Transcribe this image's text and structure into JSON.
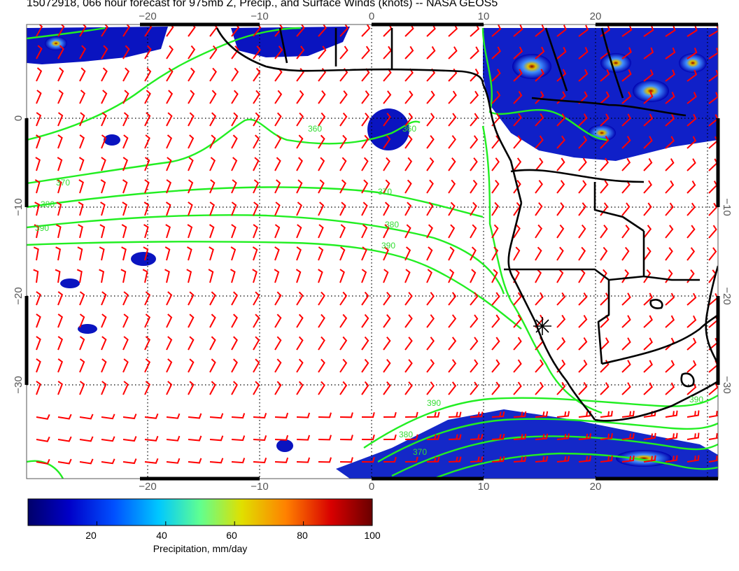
{
  "title": "15072918, 066 hour forecast for 975mb Z, Precip., and Surface Winds (knots) -- NASA GEOS5",
  "map": {
    "lon_range": [
      -30,
      31
    ],
    "lat_range": [
      -40,
      10
    ],
    "lon_ticks": [
      -20,
      -10,
      0,
      10,
      20
    ],
    "lat_ticks": [
      0,
      -10,
      -20,
      -30
    ],
    "lon_tick_labels": [
      "−20",
      "−10",
      "0",
      "10",
      "20"
    ],
    "lat_tick_labels": [
      "0",
      "−10",
      "−20",
      "−30"
    ],
    "colors": {
      "coast": "#000000",
      "contour": "#22ee22",
      "wind_barb": "#ff0000",
      "grid": "#000000"
    },
    "contour_labels": [
      "370",
      "380",
      "390",
      "360",
      "370",
      "380",
      "390",
      "360",
      "390",
      "380",
      "370",
      "390"
    ],
    "marker": "asterisk"
  },
  "colorbar": {
    "label": "Precipitation, mm/day",
    "ticks": [
      "20",
      "40",
      "60",
      "80",
      "100"
    ],
    "tick_values": [
      20,
      40,
      60,
      80,
      100
    ],
    "range": [
      0,
      100
    ],
    "colors": [
      "#00006a",
      "#0000c8",
      "#0050ff",
      "#00c8ff",
      "#60ff90",
      "#e0e000",
      "#ff8000",
      "#d80000",
      "#6a0000"
    ]
  }
}
